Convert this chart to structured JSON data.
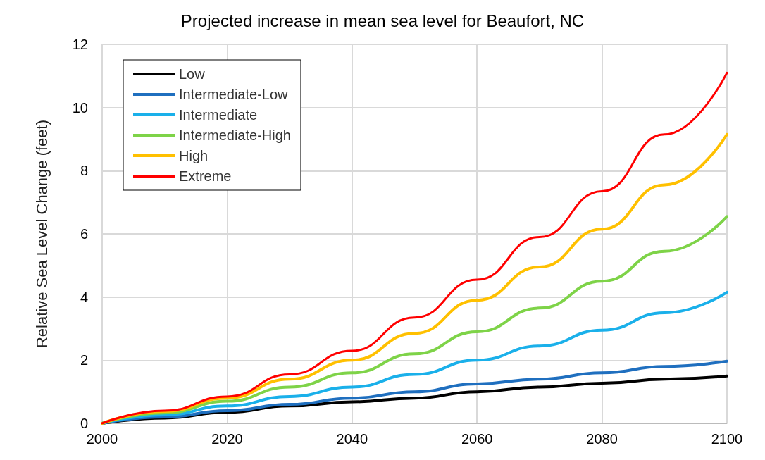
{
  "chart_data": {
    "type": "line",
    "title": "Projected increase in mean sea level for Beaufort, NC",
    "ylabel": "Relative Sea Level Change (feet)",
    "x": [
      2000,
      2010,
      2020,
      2030,
      2040,
      2050,
      2060,
      2070,
      2080,
      2090,
      2100
    ],
    "series": [
      {
        "name": "Low",
        "color": "#000000",
        "values": [
          0,
          0.17,
          0.35,
          0.55,
          0.68,
          0.8,
          1.0,
          1.15,
          1.27,
          1.4,
          1.5
        ]
      },
      {
        "name": "Intermediate-Low",
        "color": "#1f6fbf",
        "values": [
          0,
          0.2,
          0.4,
          0.6,
          0.8,
          1.0,
          1.25,
          1.4,
          1.6,
          1.8,
          1.97
        ]
      },
      {
        "name": "Intermediate",
        "color": "#1ab0ea",
        "values": [
          0,
          0.27,
          0.55,
          0.85,
          1.15,
          1.55,
          2.0,
          2.45,
          2.95,
          3.5,
          4.15
        ]
      },
      {
        "name": "Intermediate-High",
        "color": "#7ed348",
        "values": [
          0,
          0.33,
          0.7,
          1.15,
          1.6,
          2.2,
          2.9,
          3.65,
          4.5,
          5.45,
          6.55
        ]
      },
      {
        "name": "High",
        "color": "#ffc000",
        "values": [
          0,
          0.38,
          0.8,
          1.4,
          2.0,
          2.85,
          3.9,
          4.95,
          6.15,
          7.55,
          9.15
        ]
      },
      {
        "name": "Extreme",
        "color": "#ff0000",
        "values": [
          0,
          0.4,
          0.85,
          1.55,
          2.3,
          3.35,
          4.55,
          5.9,
          7.35,
          9.15,
          11.1
        ]
      }
    ],
    "xlim": [
      2000,
      2100
    ],
    "xticks": [
      2000,
      2020,
      2040,
      2060,
      2080,
      2100
    ],
    "ylim": [
      0,
      12
    ],
    "yticks": [
      0,
      2,
      4,
      6,
      8,
      10,
      12
    ],
    "grid": true,
    "legend": "top left",
    "marker": "none",
    "line_style": "solid"
  }
}
